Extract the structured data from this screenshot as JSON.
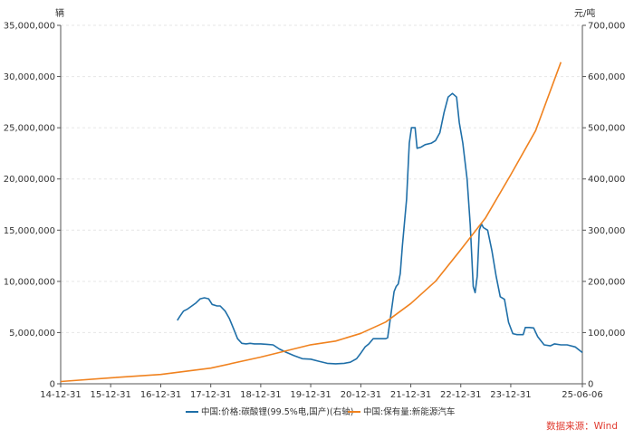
{
  "chart_data": {
    "type": "line",
    "left_axis_unit": "辆",
    "right_axis_unit": "元/吨",
    "ylim_left": [
      0,
      35000000
    ],
    "ylim_right": [
      0,
      700000
    ],
    "left_ticks": [
      "0",
      "5,000,000",
      "10,000,000",
      "15,000,000",
      "20,000,000",
      "25,000,000",
      "30,000,000",
      "35,000,000"
    ],
    "right_ticks": [
      "0",
      "100,000",
      "200,000",
      "300,000",
      "400,000",
      "500,000",
      "600,000",
      "700,000"
    ],
    "x_ticks": [
      "14-12-31",
      "15-12-31",
      "16-12-31",
      "17-12-31",
      "18-12-31",
      "19-12-31",
      "20-12-31",
      "21-12-31",
      "22-12-31",
      "23-12-31",
      "25-06-06"
    ],
    "grid": true,
    "legend_position": "bottom",
    "series": [
      {
        "name": "中国:价格:碳酸锂(99.5%电,国产)(右轴)",
        "axis": "right",
        "color": "#1f6fa8",
        "points": [
          [
            "2017-05-01",
            124000
          ],
          [
            "2017-05-20",
            132000
          ],
          [
            "2017-06-15",
            142000
          ],
          [
            "2017-07-15",
            146000
          ],
          [
            "2017-08-15",
            152000
          ],
          [
            "2017-09-15",
            158000
          ],
          [
            "2017-10-15",
            166000
          ],
          [
            "2017-11-15",
            168000
          ],
          [
            "2017-12-15",
            166000
          ],
          [
            "2018-01-10",
            155000
          ],
          [
            "2018-02-15",
            152000
          ],
          [
            "2018-03-10",
            152000
          ],
          [
            "2018-04-15",
            142000
          ],
          [
            "2018-05-15",
            128000
          ],
          [
            "2018-06-15",
            108000
          ],
          [
            "2018-07-15",
            88000
          ],
          [
            "2018-08-15",
            79000
          ],
          [
            "2018-09-15",
            78000
          ],
          [
            "2018-10-15",
            79000
          ],
          [
            "2018-11-15",
            78000
          ],
          [
            "2018-12-31",
            78000
          ],
          [
            "2019-02-15",
            77000
          ],
          [
            "2019-03-31",
            76000
          ],
          [
            "2019-05-15",
            68000
          ],
          [
            "2019-06-30",
            62000
          ],
          [
            "2019-08-31",
            55000
          ],
          [
            "2019-10-31",
            49000
          ],
          [
            "2019-12-31",
            48000
          ],
          [
            "2020-02-28",
            44000
          ],
          [
            "2020-04-30",
            40000
          ],
          [
            "2020-06-30",
            39000
          ],
          [
            "2020-08-31",
            40000
          ],
          [
            "2020-10-15",
            42000
          ],
          [
            "2020-11-30",
            49000
          ],
          [
            "2020-12-31",
            60000
          ],
          [
            "2021-01-31",
            72000
          ],
          [
            "2021-02-28",
            78000
          ],
          [
            "2021-03-31",
            88000
          ],
          [
            "2021-04-30",
            88000
          ],
          [
            "2021-05-31",
            88000
          ],
          [
            "2021-06-30",
            88000
          ],
          [
            "2021-07-15",
            90000
          ],
          [
            "2021-07-31",
            120000
          ],
          [
            "2021-08-31",
            180000
          ],
          [
            "2021-09-15",
            190000
          ],
          [
            "2021-09-30",
            195000
          ],
          [
            "2021-10-15",
            215000
          ],
          [
            "2021-10-31",
            270000
          ],
          [
            "2021-11-30",
            360000
          ],
          [
            "2021-12-20",
            470000
          ],
          [
            "2022-01-05",
            500000
          ],
          [
            "2022-01-31",
            500000
          ],
          [
            "2022-02-15",
            460000
          ],
          [
            "2022-03-15",
            462000
          ],
          [
            "2022-04-15",
            467000
          ],
          [
            "2022-05-31",
            470000
          ],
          [
            "2022-06-30",
            475000
          ],
          [
            "2022-07-31",
            490000
          ],
          [
            "2022-08-31",
            530000
          ],
          [
            "2022-09-30",
            560000
          ],
          [
            "2022-10-31",
            567000
          ],
          [
            "2022-11-30",
            560000
          ],
          [
            "2022-12-20",
            510000
          ],
          [
            "2023-01-15",
            470000
          ],
          [
            "2023-02-15",
            400000
          ],
          [
            "2023-03-10",
            310000
          ],
          [
            "2023-04-01",
            190000
          ],
          [
            "2023-04-15",
            178000
          ],
          [
            "2023-04-30",
            210000
          ],
          [
            "2023-05-15",
            300000
          ],
          [
            "2023-05-31",
            312000
          ],
          [
            "2023-06-15",
            305000
          ],
          [
            "2023-07-15",
            300000
          ],
          [
            "2023-08-15",
            260000
          ],
          [
            "2023-09-15",
            210000
          ],
          [
            "2023-10-15",
            170000
          ],
          [
            "2023-11-15",
            165000
          ],
          [
            "2023-12-15",
            120000
          ],
          [
            "2024-01-15",
            98000
          ],
          [
            "2024-02-15",
            96000
          ],
          [
            "2024-03-31",
            96000
          ],
          [
            "2024-04-15",
            110000
          ],
          [
            "2024-05-15",
            110000
          ],
          [
            "2024-06-15",
            109000
          ],
          [
            "2024-07-15",
            92000
          ],
          [
            "2024-08-31",
            76000
          ],
          [
            "2024-10-15",
            74000
          ],
          [
            "2024-11-15",
            78000
          ],
          [
            "2024-12-31",
            76000
          ],
          [
            "2025-02-15",
            76000
          ],
          [
            "2025-04-15",
            72000
          ],
          [
            "2025-06-06",
            61000
          ]
        ]
      },
      {
        "name": "中国:保有量:新能源汽车",
        "axis": "left",
        "color": "#f0821f",
        "points": [
          [
            "2014-12-31",
            220000
          ],
          [
            "2015-12-31",
            580000
          ],
          [
            "2016-12-31",
            910000
          ],
          [
            "2017-12-31",
            1530000
          ],
          [
            "2018-12-31",
            2610000
          ],
          [
            "2019-12-31",
            3810000
          ],
          [
            "2020-06-30",
            4170000
          ],
          [
            "2020-12-31",
            4920000
          ],
          [
            "2021-06-30",
            6030000
          ],
          [
            "2021-12-31",
            7840000
          ],
          [
            "2022-06-30",
            10010000
          ],
          [
            "2022-12-31",
            13100000
          ],
          [
            "2023-06-30",
            16200000
          ],
          [
            "2023-12-31",
            20410000
          ],
          [
            "2024-06-30",
            24720000
          ],
          [
            "2024-12-31",
            31400000
          ]
        ]
      }
    ]
  },
  "source_label": "数据来源：Wind"
}
